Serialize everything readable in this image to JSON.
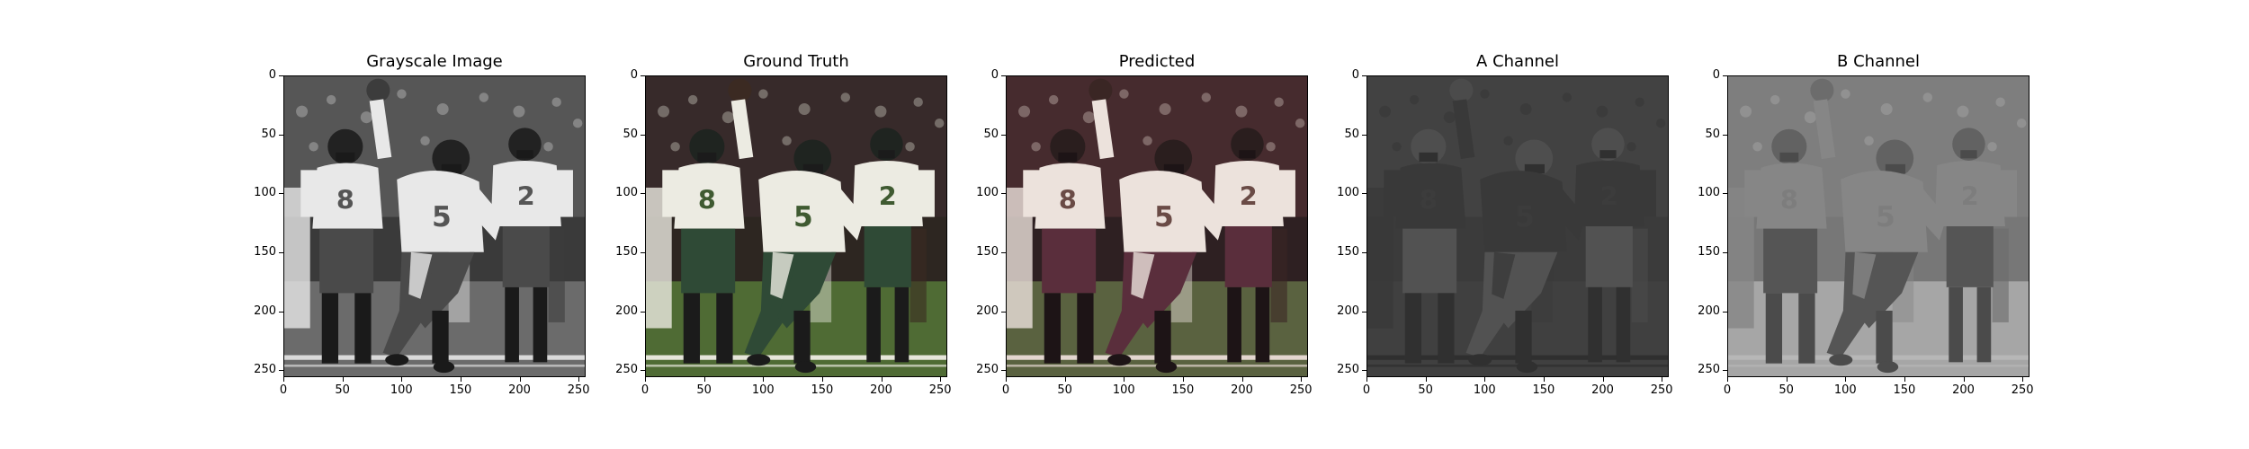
{
  "panels": [
    {
      "title": "Grayscale Image",
      "mode": "gray"
    },
    {
      "title": "Ground Truth",
      "mode": "color"
    },
    {
      "title": "Predicted",
      "mode": "pred"
    },
    {
      "title": "A Channel",
      "mode": "achan"
    },
    {
      "title": "B Channel",
      "mode": "bchan"
    }
  ],
  "yticks": [
    "0",
    "50",
    "100",
    "150",
    "200",
    "250"
  ],
  "xticks": [
    "0",
    "50",
    "100",
    "150",
    "200",
    "250"
  ],
  "ytick_values": [
    0,
    50,
    100,
    150,
    200,
    250
  ],
  "xtick_values": [
    0,
    50,
    100,
    150,
    200,
    250
  ],
  "image_extent": [
    256,
    256
  ],
  "jersey_numbers": [
    "8",
    "5",
    "2"
  ],
  "colors": {
    "team_green": "#2f4a36",
    "jersey_white": "#ecebe2",
    "turf": "#4f6b34",
    "crowd": "#3a2c2c"
  }
}
